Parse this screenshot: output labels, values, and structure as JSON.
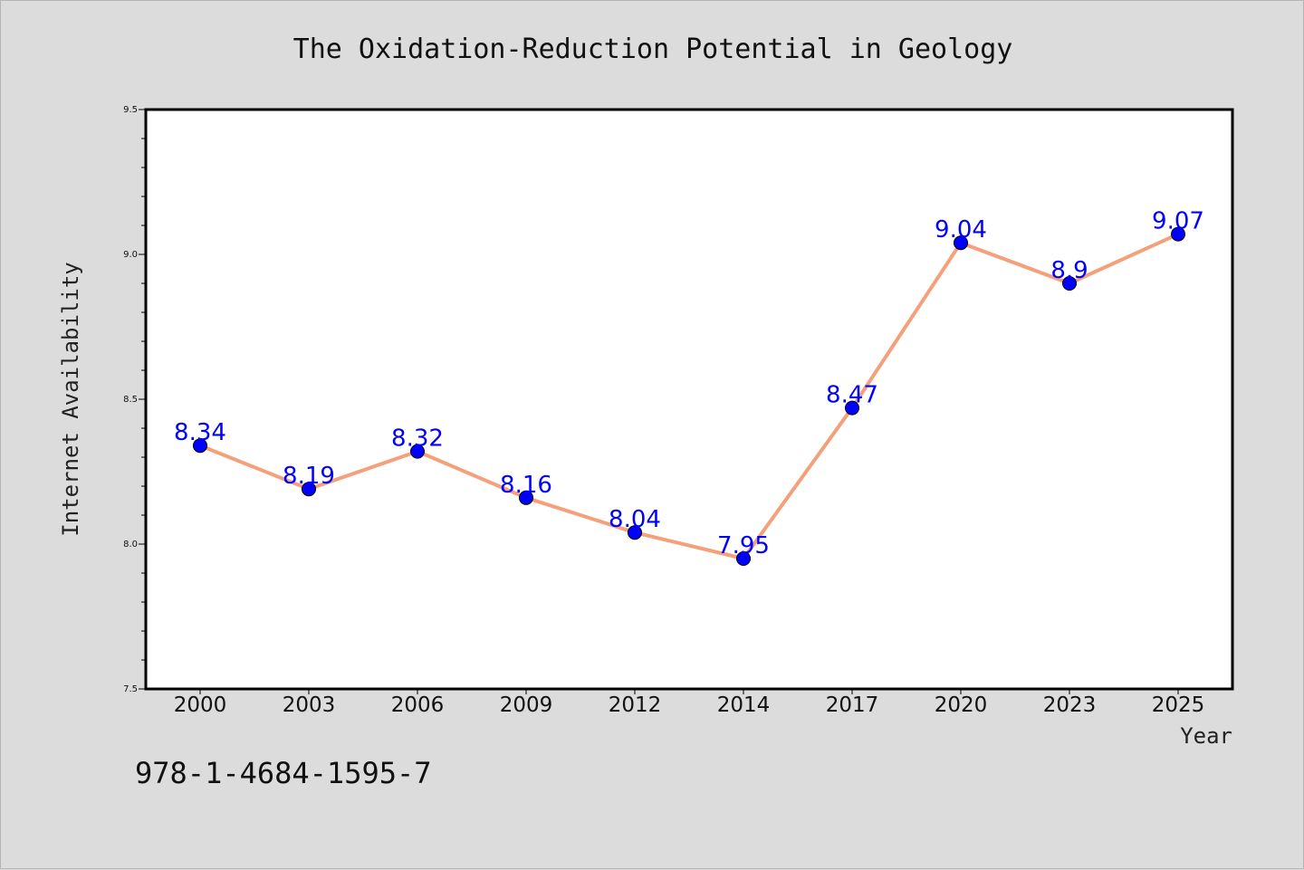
{
  "chart_data": {
    "type": "line",
    "title": "The Oxidation-Reduction Potential in Geology",
    "xlabel": "Year",
    "ylabel": "Internet Availability",
    "categories": [
      "2000",
      "2003",
      "2006",
      "2009",
      "2012",
      "2014",
      "2017",
      "2020",
      "2023",
      "2025"
    ],
    "series": [
      {
        "values": [
          8.34,
          8.19,
          8.32,
          8.16,
          8.04,
          7.95,
          8.47,
          9.04,
          8.9,
          9.07
        ],
        "labels": [
          "8.34",
          "8.19",
          "8.32",
          "8.16",
          "8.04",
          "7.95",
          "8.47",
          "9.04",
          "8.9",
          "9.07"
        ],
        "line_color": "#f4a07a",
        "marker_color": "#0000ff"
      }
    ],
    "ylim": [
      7.5,
      9.5
    ],
    "yticks": [
      "7.5",
      "8.0",
      "8.5",
      "9.0",
      "9.5"
    ],
    "grid": false,
    "data_labels": true
  },
  "footer": {
    "text": "978-1-4684-1595-7"
  }
}
